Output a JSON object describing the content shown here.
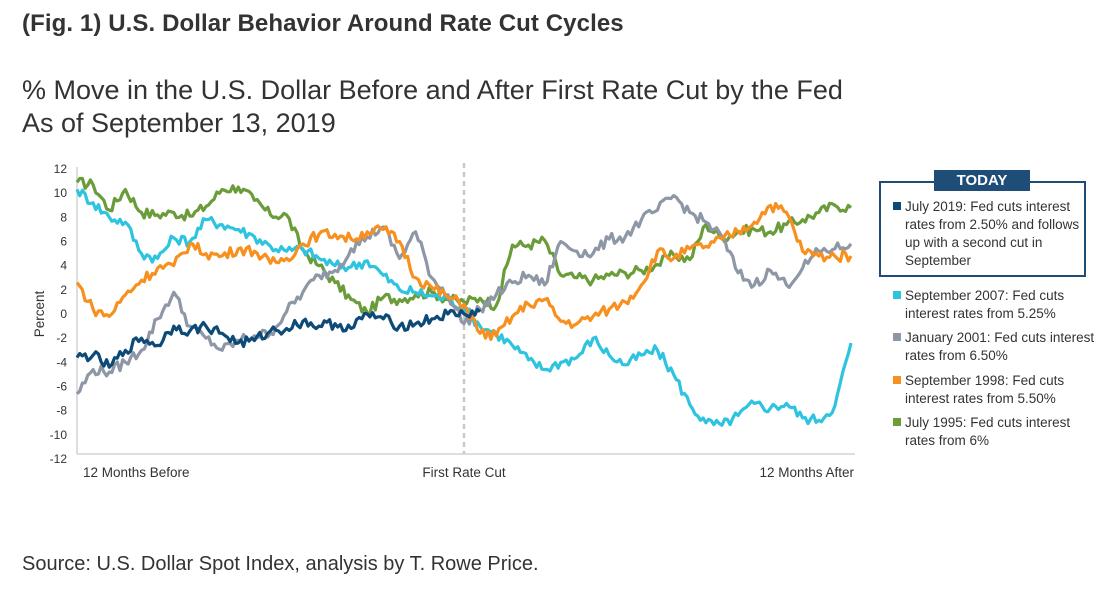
{
  "figure": {
    "title": "(Fig. 1) U.S. Dollar Behavior Around Rate Cut Cycles",
    "subtitle_line1": "% Move in the U.S. Dollar Before and After First Rate Cut by the Fed",
    "subtitle_line2": "As of September 13, 2019",
    "source": "Source: U.S. Dollar Spot Index, analysis by T. Rowe Price."
  },
  "legend": {
    "today_label": "TODAY",
    "items": [
      {
        "key": "jul2019",
        "text": "July 2019: Fed cuts interest rates from 2.50% and follows up with a second cut in September",
        "color": "#0d4a77"
      },
      {
        "key": "sep2007",
        "text": "September 2007: Fed cuts interest rates from 5.25%",
        "color": "#2ec4e0"
      },
      {
        "key": "jan2001",
        "text": "January 2001: Fed cuts interest rates from 6.50%",
        "color": "#8d97a5"
      },
      {
        "key": "sep1998",
        "text": "September 1998: Fed cuts interest rates from 5.50%",
        "color": "#f7901e"
      },
      {
        "key": "jul1995",
        "text": "July 1995: Fed cuts interest rates from 6%",
        "color": "#6a9c3a"
      }
    ]
  },
  "chart_data": {
    "type": "line",
    "title": "% Move in the U.S. Dollar Before and After First Rate Cut by the Fed",
    "xlabel": "",
    "ylabel": "Percent",
    "ylim": [
      -12,
      12
    ],
    "yticks": [
      12,
      10,
      8,
      6,
      4,
      2,
      0,
      -2,
      -4,
      -6,
      -8,
      -10,
      -12
    ],
    "xlim": [
      -12,
      12
    ],
    "x_unit": "months relative to first rate cut",
    "x_tick_labels": [
      {
        "x": -12,
        "label": "12 Months Before"
      },
      {
        "x": 0,
        "label": "First Rate Cut"
      },
      {
        "x": 12,
        "label": "12 Months After"
      }
    ],
    "reference_line": {
      "x": 0,
      "style": "dashed",
      "label": "First Rate Cut"
    },
    "grid": false,
    "legend_position": "right",
    "x": [
      -12,
      -11.5,
      -11,
      -10.5,
      -10,
      -9.5,
      -9,
      -8.5,
      -8,
      -7.5,
      -7,
      -6.5,
      -6,
      -5.5,
      -5,
      -4.5,
      -4,
      -3.5,
      -3,
      -2.5,
      -2,
      -1.5,
      -1,
      -0.5,
      0,
      0.5,
      1,
      1.5,
      2,
      2.5,
      3,
      3.5,
      4,
      4.5,
      5,
      5.5,
      6,
      6.5,
      7,
      7.5,
      8,
      8.5,
      9,
      9.5,
      10,
      10.5,
      11,
      11.5,
      12
    ],
    "series": [
      {
        "name": "July 1995: Fed cuts interest rates from 6%",
        "key": "jul1995",
        "color": "#6a9c3a",
        "values": [
          10.9,
          10.7,
          8.6,
          10.3,
          8.4,
          8.2,
          8.4,
          8.1,
          8.9,
          10.3,
          10.5,
          9.4,
          8.2,
          8.2,
          5.3,
          4.0,
          2.6,
          1.2,
          0.1,
          1.4,
          1.2,
          1.6,
          1.8,
          1.2,
          1.0,
          1.3,
          0.7,
          5.7,
          5.7,
          6.1,
          3.2,
          3.0,
          2.8,
          3.2,
          3.4,
          3.6,
          4.1,
          4.9,
          4.5,
          7.4,
          6.3,
          6.8,
          7.0,
          6.8,
          7.4,
          7.8,
          8.4,
          9.0,
          8.8
        ]
      },
      {
        "name": "September 2007: Fed cuts interest rates from 5.25%",
        "key": "sep2007",
        "color": "#2ec4e0",
        "values": [
          10.3,
          9.2,
          8.0,
          7.6,
          5.0,
          4.6,
          6.3,
          6.0,
          7.8,
          7.4,
          7.0,
          6.4,
          5.6,
          5.2,
          5.4,
          4.6,
          4.0,
          3.9,
          4.4,
          3.2,
          2.0,
          1.8,
          1.5,
          1.3,
          0.5,
          -1.0,
          -1.6,
          -2.6,
          -3.8,
          -4.6,
          -4.0,
          -3.6,
          -2.0,
          -3.4,
          -4.2,
          -3.4,
          -3.0,
          -5.0,
          -7.5,
          -9.0,
          -9.2,
          -8.4,
          -7.4,
          -7.8,
          -7.4,
          -8.6,
          -8.8,
          -7.6,
          -2.4
        ]
      },
      {
        "name": "January 2001: Fed cuts interest rates from 6.50%",
        "key": "jan2001",
        "color": "#8d97a5",
        "values": [
          -6.6,
          -4.6,
          -4.8,
          -4.0,
          -3.0,
          -0.4,
          1.8,
          -1.0,
          -2.0,
          -3.0,
          -2.2,
          -1.8,
          -1.6,
          0.2,
          1.8,
          3.2,
          3.6,
          5.4,
          6.4,
          7.2,
          4.6,
          6.8,
          3.0,
          1.6,
          -0.8,
          0.4,
          1.6,
          2.6,
          3.2,
          2.4,
          6.0,
          5.2,
          5.0,
          6.2,
          6.4,
          7.8,
          8.6,
          9.8,
          8.4,
          7.6,
          6.4,
          3.4,
          2.4,
          3.6,
          2.4,
          3.8,
          5.2,
          5.4,
          5.8
        ]
      },
      {
        "name": "September 1998: Fed cuts interest rates from 5.50%",
        "key": "sep1998",
        "color": "#f7901e",
        "values": [
          2.6,
          0.4,
          -0.2,
          1.6,
          2.8,
          3.8,
          4.0,
          5.8,
          5.0,
          4.8,
          5.4,
          5.2,
          4.2,
          4.6,
          5.8,
          6.6,
          6.6,
          6.2,
          6.8,
          7.0,
          6.0,
          3.0,
          2.2,
          1.4,
          0.8,
          -1.6,
          -1.8,
          -0.2,
          0.8,
          1.2,
          -0.6,
          -0.8,
          -0.2,
          0.4,
          1.0,
          2.4,
          5.2,
          4.6,
          5.4,
          5.6,
          6.2,
          6.8,
          7.6,
          9.0,
          8.4,
          5.2,
          4.8,
          4.8,
          4.8
        ]
      },
      {
        "name": "July 2019: Fed cuts interest rates from 2.50% and follows up with a second cut in September",
        "key": "jul2019",
        "color": "#0d4a77",
        "values": [
          -3.6,
          -3.4,
          -4.4,
          -3.0,
          -2.0,
          -2.6,
          -1.0,
          -1.4,
          -1.0,
          -1.6,
          -2.4,
          -2.2,
          -1.4,
          -1.2,
          -0.6,
          -1.0,
          -0.8,
          -1.2,
          0.0,
          -0.4,
          -1.0,
          -0.8,
          -0.4,
          0.0,
          0.0,
          0.2,
          null,
          null,
          null,
          null,
          null,
          null,
          null,
          null,
          null,
          null,
          null,
          null,
          null,
          null,
          null,
          null,
          null,
          null,
          null,
          null,
          null,
          null,
          null
        ]
      }
    ]
  }
}
